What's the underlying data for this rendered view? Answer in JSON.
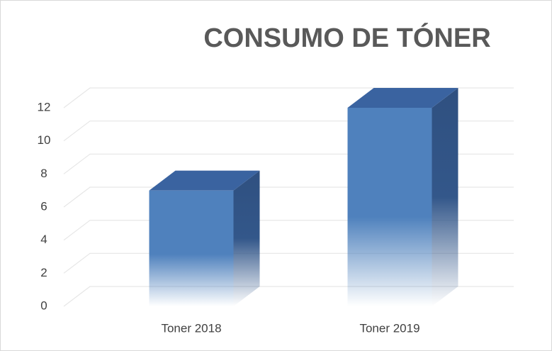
{
  "chart_data": {
    "type": "bar3d",
    "title": "CONSUMO DE TÓNER",
    "categories": [
      "Toner 2018",
      "Toner 2019"
    ],
    "values": [
      7,
      12
    ],
    "color": "#4f81bd",
    "ylim": [
      0,
      12
    ],
    "yticks": [
      0,
      2,
      4,
      6,
      8,
      10,
      12
    ],
    "grid": true
  }
}
